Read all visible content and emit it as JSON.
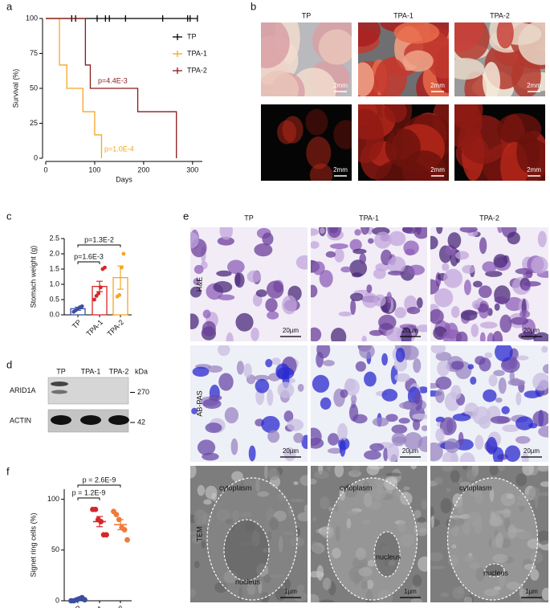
{
  "panel_labels": [
    "a",
    "b",
    "c",
    "d",
    "e",
    "f"
  ],
  "chart_data": [
    {
      "type": "line",
      "x_label": "Days",
      "y_label": "Survival (%)",
      "xlim": [
        0,
        320
      ],
      "xticks": [
        0,
        100,
        200,
        300
      ],
      "ylim": [
        0,
        100
      ],
      "yticks": [
        0,
        25,
        50,
        75,
        100
      ],
      "series": [
        {
          "name": "TP",
          "color": "#000000",
          "x": [
            0,
            310
          ],
          "values": [
            100,
            100
          ],
          "censored": [
            53,
            61,
            105,
            122,
            130,
            163,
            239,
            290,
            295,
            310
          ]
        },
        {
          "name": "TPA-1",
          "color": "#f5a623",
          "x": [
            0,
            28,
            28,
            43,
            43,
            76,
            76,
            100,
            100,
            114,
            114
          ],
          "values": [
            100,
            100,
            66.7,
            66.7,
            50,
            50,
            33.3,
            33.3,
            16.7,
            16.7,
            0
          ]
        },
        {
          "name": "TPA-2",
          "color": "#8b1a1a",
          "x": [
            0,
            81,
            81,
            91,
            91,
            188,
            188,
            267,
            267
          ],
          "values": [
            100,
            100,
            66.7,
            66.7,
            50,
            50,
            33.3,
            33.3,
            0
          ]
        }
      ],
      "annotations": [
        {
          "text": "p=4.4E-3",
          "color": "#8b1a1a"
        },
        {
          "text": "p=1.0E-4",
          "color": "#f5a623"
        }
      ]
    },
    {
      "type": "bar",
      "y_label": "Stomach weight (g)",
      "categories": [
        "TP",
        "TPA-1",
        "TPA-2"
      ],
      "values": [
        0.2,
        0.93,
        1.22
      ],
      "errors": [
        0.05,
        0.17,
        0.38
      ],
      "points": [
        [
          0.1,
          0.15,
          0.2,
          0.25,
          0.28
        ],
        [
          0.5,
          0.62,
          0.7,
          0.9,
          1.5,
          1.55
        ],
        [
          0.6,
          0.65,
          1.55,
          2.0
        ]
      ],
      "colors": [
        "#3b4fa0",
        "#d62728",
        "#f5a623"
      ],
      "ylim": [
        0,
        2.5
      ],
      "yticks": [
        {
          "value": 0,
          "label": "0.0"
        },
        0.5,
        {
          "value": 1,
          "label": "1.0"
        },
        1.5,
        {
          "value": 2,
          "label": "2.0"
        },
        2.5
      ],
      "annotations": [
        {
          "text": "p=1.6E-3"
        },
        {
          "text": "p=1.3E-2"
        }
      ]
    },
    {
      "type": "dot",
      "y_label": "Signet ring cells (%)",
      "categories": [
        "TP",
        "TPA-1",
        "TPA-2"
      ],
      "values": [
        1.5,
        78,
        75
      ],
      "errors": [
        0.6,
        5,
        5
      ],
      "points": [
        [
          0,
          0,
          1,
          2,
          3,
          1
        ],
        [
          90,
          90,
          80,
          78,
          65,
          65
        ],
        [
          88,
          85,
          80,
          72,
          70,
          60
        ]
      ],
      "colors": [
        "#3b4fa0",
        "#d62728",
        "#f07a3a"
      ],
      "ylim": [
        0,
        110
      ],
      "yticks": [
        0,
        50,
        100
      ],
      "annotations": [
        {
          "text": "p = 1.2E-9"
        },
        {
          "text": "p = 2.6E-9"
        }
      ]
    }
  ],
  "panel_b": {
    "columns": [
      "TP",
      "TPA-1",
      "TPA-2"
    ],
    "scale_bars": [
      "2mm",
      "2mm",
      "2mm",
      "2mm",
      "2mm",
      "2mm"
    ]
  },
  "panel_d": {
    "lanes": [
      "TP",
      "TPA-1",
      "TPA-2"
    ],
    "unit": "kDa",
    "rows": [
      {
        "label": "ARID1A",
        "marker": 270
      },
      {
        "label": "ACTIN",
        "marker": 42
      }
    ]
  },
  "panel_e": {
    "columns": [
      "TP",
      "TPA-1",
      "TPA-2"
    ],
    "rows": [
      "H&E",
      "AB-PAS",
      "TEM"
    ],
    "scale_bars": [
      [
        "20µm",
        "20µm",
        "20µm"
      ],
      [
        "20µm",
        "20µm",
        "20µm"
      ],
      [
        "1µm",
        "1µm",
        "1µm"
      ]
    ],
    "cytoplasm_labels": [
      "cytoplasm",
      "cytoplasm",
      "cytoplasm"
    ],
    "nucleus_labels": [
      "nucleus",
      "nucleus",
      "nucleus"
    ]
  }
}
